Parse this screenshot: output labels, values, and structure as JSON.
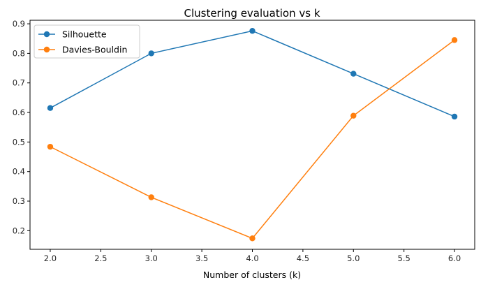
{
  "chart_data": {
    "type": "line",
    "title": "Clustering evaluation vs k",
    "xlabel": "Number of clusters (k)",
    "ylabel": "",
    "x": [
      2,
      3,
      4,
      5,
      6
    ],
    "xlim": [
      1.8,
      6.2
    ],
    "ylim": [
      0.137,
      0.912
    ],
    "xticks": [
      2.0,
      2.5,
      3.0,
      3.5,
      4.0,
      4.5,
      5.0,
      5.5,
      6.0
    ],
    "xtick_labels": [
      "2.0",
      "2.5",
      "3.0",
      "3.5",
      "4.0",
      "4.5",
      "5.0",
      "5.5",
      "6.0"
    ],
    "yticks": [
      0.2,
      0.3,
      0.4,
      0.5,
      0.6,
      0.7,
      0.8,
      0.9
    ],
    "ytick_labels": [
      "0.2",
      "0.3",
      "0.4",
      "0.5",
      "0.6",
      "0.7",
      "0.8",
      "0.9"
    ],
    "grid": false,
    "legend_position": "top-left",
    "series": [
      {
        "name": "Silhouette",
        "color": "#1f77b4",
        "values": [
          0.615,
          0.8,
          0.876,
          0.731,
          0.586
        ]
      },
      {
        "name": "Davies-Bouldin",
        "color": "#ff7f0e",
        "values": [
          0.484,
          0.313,
          0.174,
          0.589,
          0.845
        ]
      }
    ]
  }
}
